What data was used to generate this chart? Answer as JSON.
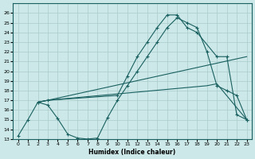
{
  "xlabel": "Humidex (Indice chaleur)",
  "xlim": [
    -0.5,
    23.5
  ],
  "ylim": [
    13,
    27
  ],
  "yticks": [
    13,
    14,
    15,
    16,
    17,
    18,
    19,
    20,
    21,
    22,
    23,
    24,
    25,
    26
  ],
  "xticks": [
    0,
    1,
    2,
    3,
    4,
    5,
    6,
    7,
    8,
    9,
    10,
    11,
    12,
    13,
    14,
    15,
    16,
    17,
    18,
    19,
    20,
    21,
    22,
    23
  ],
  "background_color": "#cce8e8",
  "grid_color": "#aacccc",
  "line_color": "#1a6060",
  "curves": [
    {
      "x": [
        0,
        1,
        2,
        3,
        4,
        5,
        6,
        7,
        8,
        9,
        10,
        11,
        12,
        13,
        14,
        15,
        16,
        17,
        18,
        19,
        20,
        21,
        22,
        23
      ],
      "y": [
        13.3,
        15.0,
        16.8,
        16.5,
        15.1,
        13.5,
        13.1,
        13.0,
        13.1,
        15.2,
        17.0,
        18.5,
        20.0,
        21.5,
        23.0,
        24.5,
        25.5,
        25.0,
        24.5,
        22.0,
        18.5,
        18.0,
        17.5,
        15.0
      ],
      "marker": true
    },
    {
      "x": [
        2,
        3,
        10,
        11,
        12,
        13,
        14,
        15,
        16,
        17,
        18,
        20,
        21,
        22,
        23
      ],
      "y": [
        16.8,
        17.0,
        17.5,
        19.5,
        21.5,
        23.0,
        24.5,
        25.8,
        25.8,
        24.5,
        24.0,
        21.5,
        21.5,
        15.5,
        15.0
      ],
      "marker": true
    },
    {
      "x": [
        2,
        3,
        23
      ],
      "y": [
        16.8,
        17.0,
        21.5
      ],
      "marker": false
    },
    {
      "x": [
        2,
        3,
        19,
        20,
        23
      ],
      "y": [
        16.8,
        17.0,
        18.5,
        18.7,
        15.0
      ],
      "marker": false
    }
  ]
}
